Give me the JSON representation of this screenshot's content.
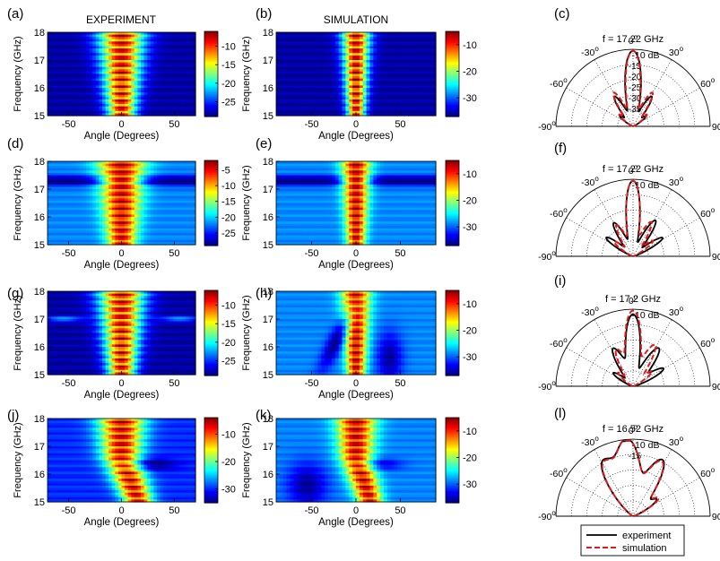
{
  "figure": {
    "column_titles": [
      "EXPERIMENT",
      "SIMULATION"
    ],
    "heatmap_ylabel": "Frequency (GHz)",
    "heatmap_xlabel": "Angle (Degrees)",
    "colors": {
      "experiment": "#000000",
      "simulation": "#e8171c"
    }
  },
  "chart_data": [
    {
      "panel": "(a)",
      "type": "heatmap",
      "title": "",
      "xlabel": "Angle (Degrees)",
      "ylabel": "Frequency (GHz)",
      "xlim": [
        -70,
        70
      ],
      "ylim": [
        15,
        18
      ],
      "xticks": [
        -50,
        0,
        50
      ],
      "yticks": [
        15,
        16,
        17,
        18
      ],
      "colorbar": {
        "ticks": [
          -10,
          -15,
          -20,
          -25
        ],
        "range": [
          -29,
          -6
        ],
        "unit": "dB"
      },
      "pattern": "a"
    },
    {
      "panel": "(b)",
      "type": "heatmap",
      "title": "",
      "xlabel": "Angle (Degrees)",
      "ylabel": "Frequency (GHz)",
      "xlim": [
        -90,
        90
      ],
      "ylim": [
        15,
        18
      ],
      "xticks": [
        -50,
        0,
        50
      ],
      "yticks": [
        15,
        16,
        17,
        18
      ],
      "colorbar": {
        "ticks": [
          -10,
          -20,
          -30
        ],
        "range": [
          -37,
          -5
        ],
        "unit": "dB"
      },
      "pattern": "b"
    },
    {
      "panel": "(c)",
      "type": "polar",
      "title": "f = 17.22 GHz",
      "rlabel": "-10 dB",
      "rticks": [
        -10,
        -15,
        -20,
        -25,
        -30,
        -35
      ],
      "theta_ticks": [
        -90,
        -60,
        -30,
        0,
        30,
        60,
        90
      ],
      "series": [
        {
          "name": "experiment"
        },
        {
          "name": "simulation"
        }
      ]
    },
    {
      "panel": "(d)",
      "type": "heatmap",
      "title": "",
      "xlabel": "Angle (Degrees)",
      "ylabel": "Frequency (GHz)",
      "xlim": [
        -70,
        70
      ],
      "ylim": [
        15,
        18
      ],
      "xticks": [
        -50,
        0,
        50
      ],
      "yticks": [
        15,
        16,
        17,
        18
      ],
      "colorbar": {
        "ticks": [
          -5,
          -10,
          -15,
          -20,
          -25
        ],
        "range": [
          -29,
          -2
        ],
        "unit": "dB"
      },
      "pattern": "d"
    },
    {
      "panel": "(e)",
      "type": "heatmap",
      "title": "",
      "xlabel": "Angle (Degrees)",
      "ylabel": "Frequency (GHz)",
      "xlim": [
        -90,
        90
      ],
      "ylim": [
        15,
        18
      ],
      "xticks": [
        -50,
        0,
        50
      ],
      "yticks": [
        15,
        16,
        17,
        18
      ],
      "colorbar": {
        "ticks": [
          -10,
          -20,
          -30
        ],
        "range": [
          -37,
          -5
        ],
        "unit": "dB"
      },
      "pattern": "e"
    },
    {
      "panel": "(f)",
      "type": "polar",
      "title": "f = 17.22 GHz",
      "rlabel": "-10 dB",
      "rticks": [
        -10
      ],
      "theta_ticks": [
        -90,
        -60,
        -30,
        0,
        30,
        60,
        90
      ],
      "series": [
        {
          "name": "experiment"
        },
        {
          "name": "simulation"
        }
      ]
    },
    {
      "panel": "(g)",
      "type": "heatmap",
      "title": "",
      "xlabel": "Angle (Degrees)",
      "ylabel": "Frequency (GHz)",
      "xlim": [
        -70,
        70
      ],
      "ylim": [
        15,
        18
      ],
      "xticks": [
        -50,
        0,
        50
      ],
      "yticks": [
        15,
        16,
        17,
        18
      ],
      "colorbar": {
        "ticks": [
          -10,
          -15,
          -20,
          -25
        ],
        "range": [
          -29,
          -6
        ],
        "unit": "dB"
      },
      "pattern": "g"
    },
    {
      "panel": "(h)",
      "type": "heatmap",
      "title": "",
      "xlabel": "Angle (Degrees)",
      "ylabel": "Frequency (GHz)",
      "xlim": [
        -90,
        90
      ],
      "ylim": [
        15,
        18
      ],
      "xticks": [
        -50,
        0,
        50
      ],
      "yticks": [
        15,
        16,
        17,
        18
      ],
      "colorbar": {
        "ticks": [
          -10,
          -20,
          -30
        ],
        "range": [
          -37,
          -5
        ],
        "unit": "dB"
      },
      "pattern": "h"
    },
    {
      "panel": "(i)",
      "type": "polar",
      "title": "f = 17.2 GHz",
      "rlabel": "-10 dB",
      "rticks": [
        -10
      ],
      "theta_ticks": [
        -90,
        -60,
        -30,
        0,
        30,
        60,
        90
      ],
      "series": [
        {
          "name": "experiment"
        },
        {
          "name": "simulation"
        }
      ]
    },
    {
      "panel": "(j)",
      "type": "heatmap",
      "title": "",
      "xlabel": "Angle (Degrees)",
      "ylabel": "Frequency (GHz)",
      "xlim": [
        -70,
        70
      ],
      "ylim": [
        15,
        18
      ],
      "xticks": [
        -50,
        0,
        50
      ],
      "yticks": [
        15,
        16,
        17,
        18
      ],
      "colorbar": {
        "ticks": [
          -10,
          -20,
          -30
        ],
        "range": [
          -35,
          -4
        ],
        "unit": "dB"
      },
      "pattern": "j"
    },
    {
      "panel": "(k)",
      "type": "heatmap",
      "title": "",
      "xlabel": "Angle (Degrees)",
      "ylabel": "Frequency (GHz)",
      "xlim": [
        -90,
        90
      ],
      "ylim": [
        15,
        18
      ],
      "xticks": [
        -50,
        0,
        50
      ],
      "yticks": [
        15,
        16,
        17,
        18
      ],
      "colorbar": {
        "ticks": [
          -10,
          -20,
          -30
        ],
        "range": [
          -37,
          -5
        ],
        "unit": "dB"
      },
      "pattern": "k"
    },
    {
      "panel": "(l)",
      "type": "polar",
      "title": "f = 16.52 GHz",
      "rlabel": "-10 dB",
      "rticks": [
        -10,
        -15
      ],
      "theta_ticks": [
        -90,
        -60,
        -30,
        0,
        30,
        60,
        90
      ],
      "series": [
        {
          "name": "experiment"
        },
        {
          "name": "simulation"
        }
      ]
    }
  ],
  "legend": {
    "experiment": "experiment",
    "simulation": "simulation"
  }
}
